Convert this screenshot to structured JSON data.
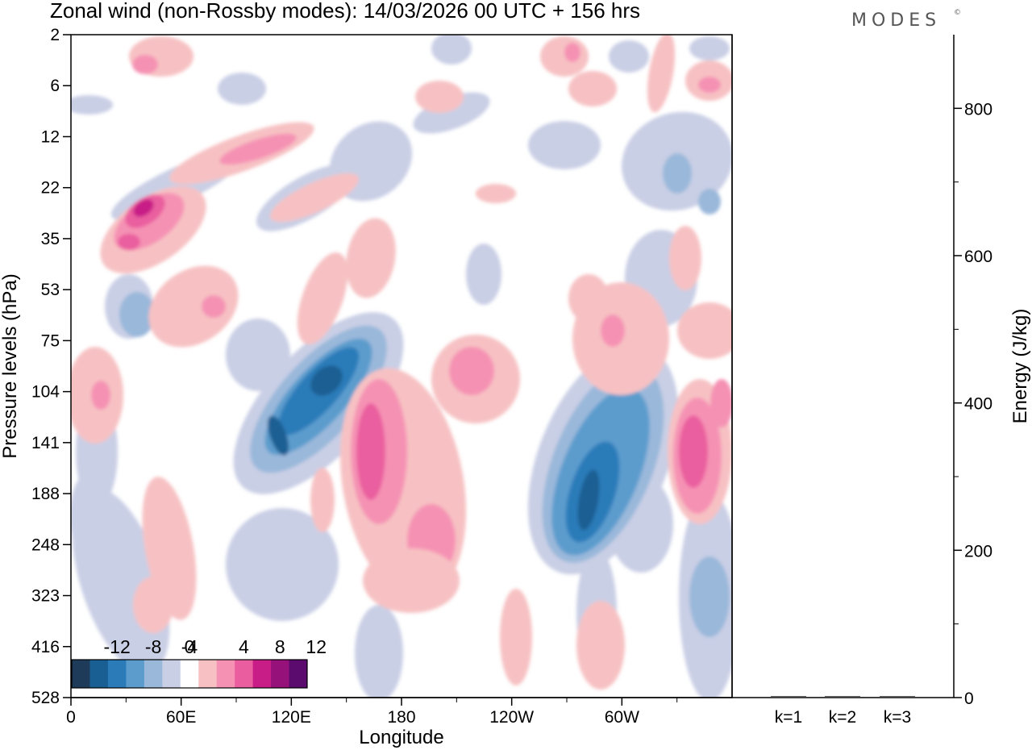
{
  "chart_data": {
    "type": "heatmap",
    "title": "Zonal wind (non-Rossby modes):  14/03/2026  00 UTC  + 156 hrs",
    "brand": "MODES",
    "brand_mark": "©",
    "xlabel": "Longitude",
    "ylabel": "Pressure levels (hPa)",
    "y2label": "Energy (J/kg)",
    "x_ticks": [
      "0",
      "60E",
      "120E",
      "180",
      "120W",
      "60W"
    ],
    "y_ticks": [
      "2",
      "6",
      "12",
      "22",
      "35",
      "53",
      "75",
      "104",
      "141",
      "188",
      "248",
      "323",
      "416",
      "528"
    ],
    "energy_axis": {
      "range": [
        0,
        900
      ],
      "ticks": [
        "0",
        "200",
        "400",
        "600",
        "800"
      ]
    },
    "energy_categories": [
      "k=1",
      "k=2",
      "k=3"
    ],
    "energy_values": [
      2,
      2,
      2
    ],
    "colorbar": {
      "labels": [
        "-12",
        "-8",
        "-4",
        "0",
        "4",
        "8",
        "12"
      ],
      "levels": [
        -16,
        -14,
        -12,
        -10,
        -8,
        -6,
        -4,
        -2,
        2,
        4,
        6,
        8,
        10,
        12,
        14,
        16
      ],
      "colors": [
        "#1f3b5a",
        "#1a5f93",
        "#2b7bb9",
        "#5b9ccd",
        "#9ab8da",
        "#c9cfe5",
        "#ffffff",
        "#f7c1c3",
        "#f592b4",
        "#ea5e9f",
        "#c81d87",
        "#96117a",
        "#5b0a6e"
      ]
    },
    "features": [
      {
        "name": "tilted-negative-band-west",
        "lon": [
          120,
          150
        ],
        "hPa": [
          75,
          248
        ],
        "min": -12
      },
      {
        "name": "negative-core-west-pacific",
        "lon": [
          125,
          140
        ],
        "hPa": [
          104,
          188
        ],
        "min": -14
      },
      {
        "name": "positive-band-central-pacific",
        "lon": [
          160,
          195
        ],
        "hPa": [
          104,
          323
        ],
        "max": 8
      },
      {
        "name": "negative-band-americas",
        "lon": [
          245,
          290
        ],
        "hPa": [
          104,
          248
        ],
        "min": -14
      },
      {
        "name": "positive-band-atlantic",
        "lon": [
          320,
          350
        ],
        "hPa": [
          104,
          248
        ],
        "max": 10
      },
      {
        "name": "upper-positive-tilt",
        "lon": [
          30,
          110
        ],
        "hPa": [
          12,
          35
        ],
        "max": 14
      }
    ]
  }
}
